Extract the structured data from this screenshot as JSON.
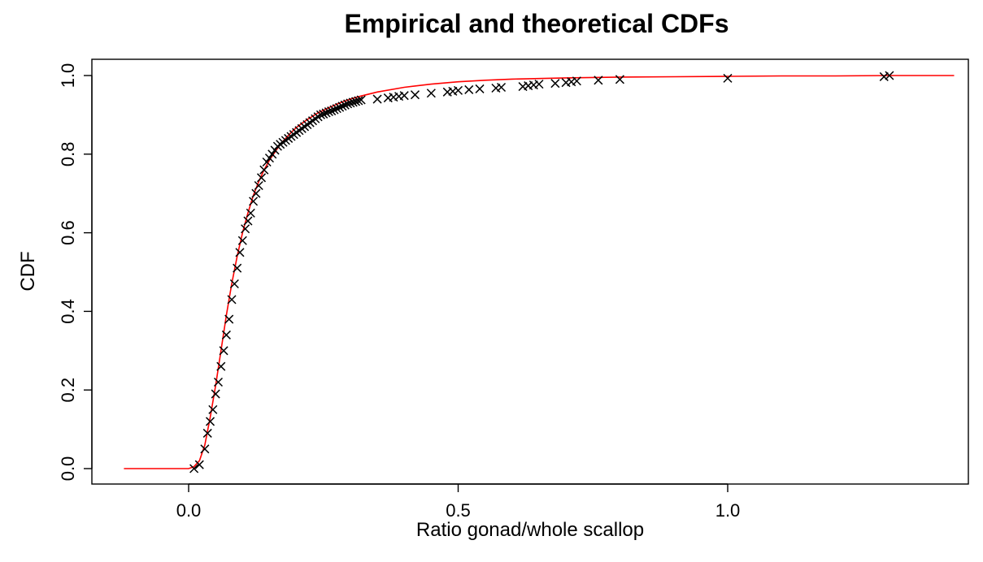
{
  "chart_data": {
    "type": "scatter",
    "title": "Empirical and theoretical CDFs",
    "xlabel": "Ratio gonad/whole scallop",
    "ylabel": "CDF",
    "xlim": [
      -0.12,
      1.42
    ],
    "ylim": [
      0.0,
      1.0
    ],
    "x_ticks": [
      0.0,
      0.5,
      1.0
    ],
    "x_tick_labels": [
      "0.0",
      "0.5",
      "1.0"
    ],
    "y_ticks": [
      0.0,
      0.2,
      0.4,
      0.6,
      0.8,
      1.0
    ],
    "y_tick_labels": [
      "0.0",
      "0.2",
      "0.4",
      "0.6",
      "0.8",
      "1.0"
    ],
    "grid": false,
    "legend": "none",
    "series": [
      {
        "kind": "empirical",
        "marker": "x",
        "color": "#000000",
        "x": [
          0.01,
          0.02,
          0.03,
          0.035,
          0.04,
          0.045,
          0.05,
          0.055,
          0.06,
          0.065,
          0.07,
          0.075,
          0.08,
          0.085,
          0.09,
          0.095,
          0.1,
          0.105,
          0.11,
          0.115,
          0.12,
          0.125,
          0.13,
          0.135,
          0.14,
          0.145,
          0.15,
          0.155,
          0.16,
          0.165,
          0.17,
          0.175,
          0.18,
          0.185,
          0.19,
          0.195,
          0.2,
          0.205,
          0.21,
          0.215,
          0.22,
          0.225,
          0.23,
          0.235,
          0.24,
          0.245,
          0.25,
          0.255,
          0.26,
          0.265,
          0.27,
          0.275,
          0.28,
          0.285,
          0.29,
          0.295,
          0.3,
          0.305,
          0.31,
          0.315,
          0.32,
          0.35,
          0.37,
          0.38,
          0.39,
          0.4,
          0.42,
          0.45,
          0.48,
          0.49,
          0.5,
          0.52,
          0.54,
          0.57,
          0.58,
          0.62,
          0.63,
          0.64,
          0.65,
          0.68,
          0.7,
          0.71,
          0.72,
          0.76,
          0.8,
          1.0,
          1.29,
          1.3
        ],
        "y": [
          0.0,
          0.01,
          0.05,
          0.09,
          0.12,
          0.15,
          0.19,
          0.22,
          0.26,
          0.3,
          0.34,
          0.38,
          0.43,
          0.47,
          0.51,
          0.55,
          0.58,
          0.61,
          0.63,
          0.65,
          0.68,
          0.7,
          0.72,
          0.74,
          0.76,
          0.78,
          0.79,
          0.8,
          0.81,
          0.82,
          0.825,
          0.83,
          0.835,
          0.84,
          0.845,
          0.85,
          0.855,
          0.86,
          0.865,
          0.87,
          0.875,
          0.88,
          0.885,
          0.89,
          0.895,
          0.9,
          0.902,
          0.905,
          0.908,
          0.91,
          0.913,
          0.916,
          0.919,
          0.922,
          0.925,
          0.928,
          0.93,
          0.932,
          0.934,
          0.936,
          0.938,
          0.94,
          0.943,
          0.945,
          0.947,
          0.949,
          0.951,
          0.955,
          0.958,
          0.96,
          0.962,
          0.964,
          0.966,
          0.968,
          0.97,
          0.972,
          0.974,
          0.976,
          0.978,
          0.98,
          0.982,
          0.984,
          0.986,
          0.988,
          0.99,
          0.993,
          0.997,
          1.0
        ]
      },
      {
        "kind": "theoretical",
        "color": "#ff0000",
        "x": [
          -0.12,
          0.0,
          0.01,
          0.02,
          0.03,
          0.04,
          0.05,
          0.06,
          0.07,
          0.08,
          0.09,
          0.1,
          0.11,
          0.12,
          0.13,
          0.14,
          0.15,
          0.16,
          0.17,
          0.18,
          0.19,
          0.2,
          0.22,
          0.24,
          0.26,
          0.28,
          0.3,
          0.32,
          0.35,
          0.4,
          0.45,
          0.5,
          0.55,
          0.6,
          0.7,
          0.8,
          0.9,
          1.0,
          1.1,
          1.2,
          1.3,
          1.42
        ],
        "y": [
          0.0,
          0.0,
          0.005,
          0.02,
          0.06,
          0.13,
          0.21,
          0.3,
          0.39,
          0.47,
          0.54,
          0.6,
          0.65,
          0.695,
          0.73,
          0.76,
          0.785,
          0.805,
          0.825,
          0.84,
          0.855,
          0.868,
          0.888,
          0.905,
          0.918,
          0.93,
          0.94,
          0.948,
          0.958,
          0.97,
          0.978,
          0.984,
          0.988,
          0.991,
          0.994,
          0.996,
          0.997,
          0.998,
          0.999,
          0.999,
          1.0,
          1.0
        ]
      }
    ]
  }
}
